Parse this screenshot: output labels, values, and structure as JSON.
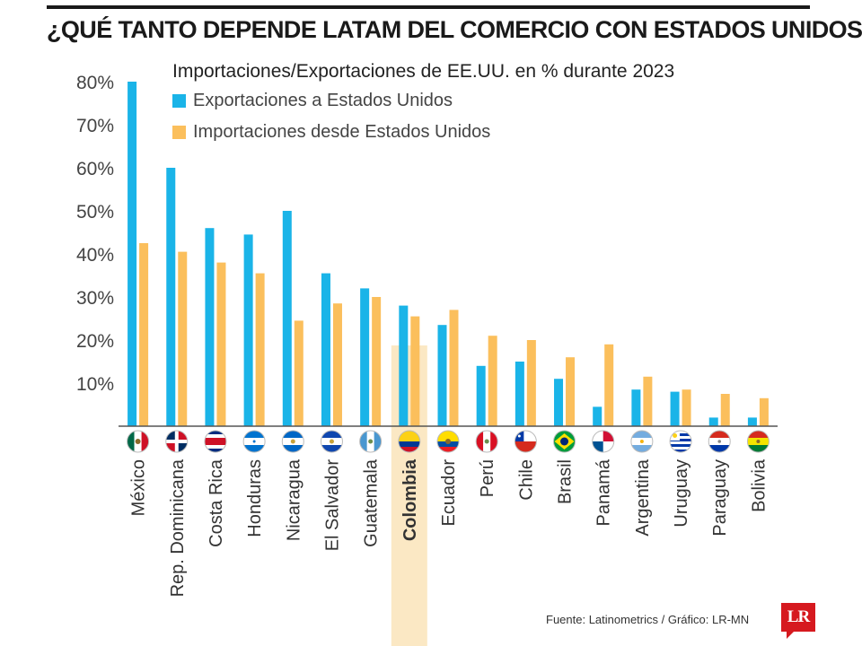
{
  "headline": "¿QUÉ TANTO DEPENDE LATAM DEL COMERCIO CON ESTADOS UNIDOS?",
  "footer": "Fuente: Latinometrics / Gráfico: LR-MN",
  "logo_text": "LR",
  "colors": {
    "exports": "#1ab4e8",
    "imports": "#fbbf5c",
    "highlight": "#fbe8c4",
    "axis": "#555555"
  },
  "chart_data": {
    "type": "bar",
    "title": "Importaciones/Exportaciones de EE.UU. en % durante 2023",
    "xlabel": "",
    "ylabel": "",
    "ylim": [
      0,
      80
    ],
    "yticks": [
      "10%",
      "20%",
      "30%",
      "40%",
      "50%",
      "60%",
      "70%",
      "80%"
    ],
    "legend_position": "top-left",
    "highlight_category": "Colombia",
    "categories": [
      "México",
      "Rep. Dominicana",
      "Costa Rica",
      "Honduras",
      "Nicaragua",
      "El Salvador",
      "Guatemala",
      "Colombia",
      "Ecuador",
      "Perú",
      "Chile",
      "Brasil",
      "Panamá",
      "Argentina",
      "Uruguay",
      "Paraguay",
      "Bolivia"
    ],
    "series": [
      {
        "name": "Exportaciones a Estados Unidos",
        "color": "#1ab4e8",
        "values": [
          80,
          60,
          46,
          44.5,
          50,
          35.5,
          32,
          28,
          23.5,
          14,
          15,
          11,
          4.5,
          8.5,
          8,
          2,
          2
        ]
      },
      {
        "name": "Importaciones desde Estados Unidos",
        "color": "#fbbf5c",
        "values": [
          42.5,
          40.5,
          38,
          35.5,
          24.5,
          28.5,
          30,
          25.5,
          27,
          21,
          20,
          16,
          19,
          11.5,
          8.5,
          7.5,
          6.5
        ]
      }
    ],
    "flags": [
      "flag-mexico-icon",
      "flag-dominican-republic-icon",
      "flag-costa-rica-icon",
      "flag-honduras-icon",
      "flag-nicaragua-icon",
      "flag-el-salvador-icon",
      "flag-guatemala-icon",
      "flag-colombia-icon",
      "flag-ecuador-icon",
      "flag-peru-icon",
      "flag-chile-icon",
      "flag-brazil-icon",
      "flag-panama-icon",
      "flag-argentina-icon",
      "flag-uruguay-icon",
      "flag-paraguay-icon",
      "flag-bolivia-icon"
    ]
  }
}
